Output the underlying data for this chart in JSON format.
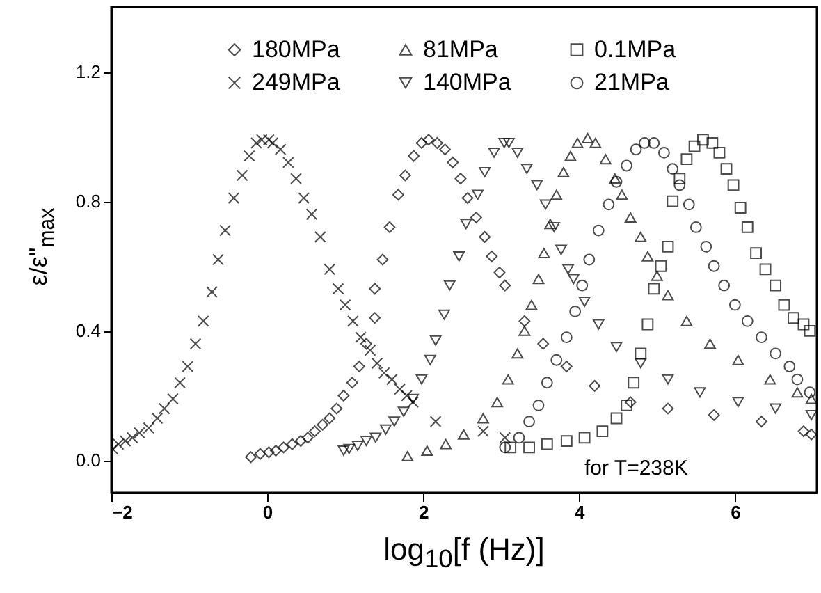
{
  "chart_data": {
    "type": "scatter",
    "xlabel": "log$_{10}$[f (Hz)]",
    "ylabel": "ε/ε\"$_{max}$",
    "xlim": [
      -2,
      7.05
    ],
    "ylim": [
      -0.1,
      1.4
    ],
    "xticks": [
      -2,
      0,
      2,
      4,
      6
    ],
    "yticks": [
      {
        "value": 0,
        "label": "0.0"
      },
      0.4,
      0.8,
      1.2
    ],
    "grid": false,
    "legend": "top",
    "annotations": [
      "for T=238K"
    ],
    "series": [
      {
        "name": "180MPa",
        "color": "#000000",
        "marker": "diamond",
        "x": [
          -0.21,
          -0.09,
          0.02,
          0.11,
          0.21,
          0.32,
          0.43,
          0.52,
          0.61,
          0.71,
          0.8,
          0.89,
          0.98,
          1.09,
          1.18,
          1.27,
          1.38,
          1.38,
          1.48,
          1.57,
          1.68,
          1.77,
          1.88,
          1.98,
          2.07,
          2.18,
          2.28,
          2.38,
          2.48,
          2.57,
          2.68,
          2.79,
          2.88,
          2.98,
          3.05,
          3.3,
          3.54,
          3.84,
          4.2,
          4.66,
          5.14,
          5.73,
          6.34,
          6.88,
          6.98
        ],
        "values": [
          0.01,
          0.02,
          0.025,
          0.03,
          0.04,
          0.05,
          0.06,
          0.07,
          0.09,
          0.11,
          0.13,
          0.16,
          0.2,
          0.24,
          0.29,
          0.36,
          0.44,
          0.53,
          0.62,
          0.72,
          0.82,
          0.88,
          0.94,
          0.98,
          0.99,
          0.98,
          0.96,
          0.92,
          0.87,
          0.81,
          0.75,
          0.69,
          0.63,
          0.58,
          0.54,
          0.43,
          0.36,
          0.29,
          0.23,
          0.18,
          0.16,
          0.14,
          0.12,
          0.09,
          0.08
        ]
      },
      {
        "name": "81MPa",
        "color": "#000000",
        "marker": "triangle",
        "x": [
          1.8,
          2.05,
          2.29,
          2.52,
          2.77,
          2.95,
          3.09,
          3.21,
          3.3,
          3.39,
          3.48,
          3.55,
          3.63,
          3.71,
          3.8,
          3.89,
          3.98,
          4.11,
          4.21,
          4.34,
          4.46,
          4.55,
          4.66,
          4.79,
          4.88,
          5.0,
          5.14,
          5.38,
          5.68,
          6.04,
          6.45,
          6.8,
          6.98
        ],
        "values": [
          0.013,
          0.03,
          0.05,
          0.08,
          0.13,
          0.18,
          0.25,
          0.33,
          0.4,
          0.48,
          0.56,
          0.64,
          0.73,
          0.82,
          0.89,
          0.94,
          0.98,
          0.995,
          0.98,
          0.93,
          0.87,
          0.82,
          0.75,
          0.69,
          0.63,
          0.57,
          0.51,
          0.43,
          0.36,
          0.31,
          0.25,
          0.21,
          0.19
        ]
      },
      {
        "name": "0.1MPa",
        "color": "#000000",
        "marker": "square",
        "x": [
          3.12,
          3.36,
          3.59,
          3.84,
          4.07,
          4.3,
          4.48,
          4.61,
          4.7,
          4.79,
          4.88,
          4.96,
          5.05,
          5.14,
          5.2,
          5.29,
          5.38,
          5.48,
          5.59,
          5.71,
          5.8,
          5.89,
          5.98,
          6.07,
          6.16,
          6.27,
          6.39,
          6.52,
          6.63,
          6.75,
          6.88,
          6.96
        ],
        "values": [
          0.04,
          0.04,
          0.05,
          0.06,
          0.07,
          0.09,
          0.13,
          0.17,
          0.24,
          0.33,
          0.42,
          0.53,
          0.6,
          0.66,
          0.8,
          0.87,
          0.93,
          0.97,
          0.99,
          0.98,
          0.95,
          0.9,
          0.85,
          0.78,
          0.72,
          0.64,
          0.59,
          0.54,
          0.48,
          0.44,
          0.42,
          0.4
        ]
      },
      {
        "name": "249MPa",
        "color": "#000000",
        "marker": "cross",
        "x": [
          -1.98,
          -1.91,
          -1.82,
          -1.73,
          -1.64,
          -1.52,
          -1.41,
          -1.32,
          -1.21,
          -1.12,
          -1.02,
          -0.92,
          -0.82,
          -0.71,
          -0.63,
          -0.54,
          -0.43,
          -0.32,
          -0.23,
          -0.14,
          -0.07,
          0.02,
          0.07,
          0.17,
          0.27,
          0.37,
          0.47,
          0.57,
          0.68,
          0.8,
          0.91,
          1.0,
          1.1,
          1.2,
          1.32,
          1.41,
          1.5,
          1.6,
          1.7,
          1.79,
          1.87,
          2.16,
          2.77,
          3.05
        ],
        "values": [
          0.035,
          0.05,
          0.06,
          0.07,
          0.085,
          0.1,
          0.13,
          0.16,
          0.19,
          0.24,
          0.29,
          0.36,
          0.43,
          0.52,
          0.62,
          0.71,
          0.81,
          0.88,
          0.94,
          0.98,
          0.99,
          0.99,
          0.98,
          0.96,
          0.92,
          0.87,
          0.81,
          0.76,
          0.69,
          0.59,
          0.53,
          0.48,
          0.43,
          0.38,
          0.34,
          0.3,
          0.27,
          0.25,
          0.22,
          0.2,
          0.18,
          0.12,
          0.09,
          0.07
        ]
      },
      {
        "name": "140MPa",
        "color": "#000000",
        "marker": "triangle-down",
        "x": [
          0.98,
          1.05,
          1.16,
          1.27,
          1.39,
          1.52,
          1.63,
          1.75,
          1.87,
          1.98,
          2.09,
          2.16,
          2.27,
          2.34,
          2.46,
          2.55,
          2.7,
          2.79,
          2.91,
          3.04,
          3.1,
          3.21,
          3.33,
          3.46,
          3.57,
          3.68,
          3.77,
          3.86,
          3.93,
          4.07,
          4.25,
          4.48,
          4.79,
          5.14,
          5.55,
          6.04,
          6.52,
          6.98
        ],
        "values": [
          0.03,
          0.035,
          0.045,
          0.06,
          0.07,
          0.095,
          0.12,
          0.15,
          0.19,
          0.25,
          0.31,
          0.37,
          0.45,
          0.54,
          0.63,
          0.73,
          0.82,
          0.89,
          0.95,
          0.98,
          0.98,
          0.95,
          0.9,
          0.85,
          0.79,
          0.72,
          0.65,
          0.59,
          0.56,
          0.49,
          0.42,
          0.35,
          0.3,
          0.25,
          0.21,
          0.18,
          0.16,
          0.14
        ]
      },
      {
        "name": "21MPa",
        "color": "#000000",
        "marker": "circle",
        "x": [
          3.05,
          3.23,
          3.36,
          3.48,
          3.59,
          3.71,
          3.84,
          3.95,
          4.04,
          4.13,
          4.25,
          4.38,
          4.48,
          4.61,
          4.73,
          4.84,
          4.96,
          5.09,
          5.2,
          5.29,
          5.41,
          5.5,
          5.63,
          5.73,
          5.86,
          6.0,
          6.16,
          6.34,
          6.52,
          6.7,
          6.8,
          6.96
        ],
        "values": [
          0.04,
          0.07,
          0.12,
          0.17,
          0.24,
          0.31,
          0.38,
          0.46,
          0.54,
          0.62,
          0.71,
          0.79,
          0.86,
          0.91,
          0.96,
          0.98,
          0.98,
          0.95,
          0.9,
          0.85,
          0.79,
          0.72,
          0.66,
          0.6,
          0.54,
          0.48,
          0.43,
          0.38,
          0.33,
          0.29,
          0.25,
          0.21
        ]
      }
    ]
  }
}
